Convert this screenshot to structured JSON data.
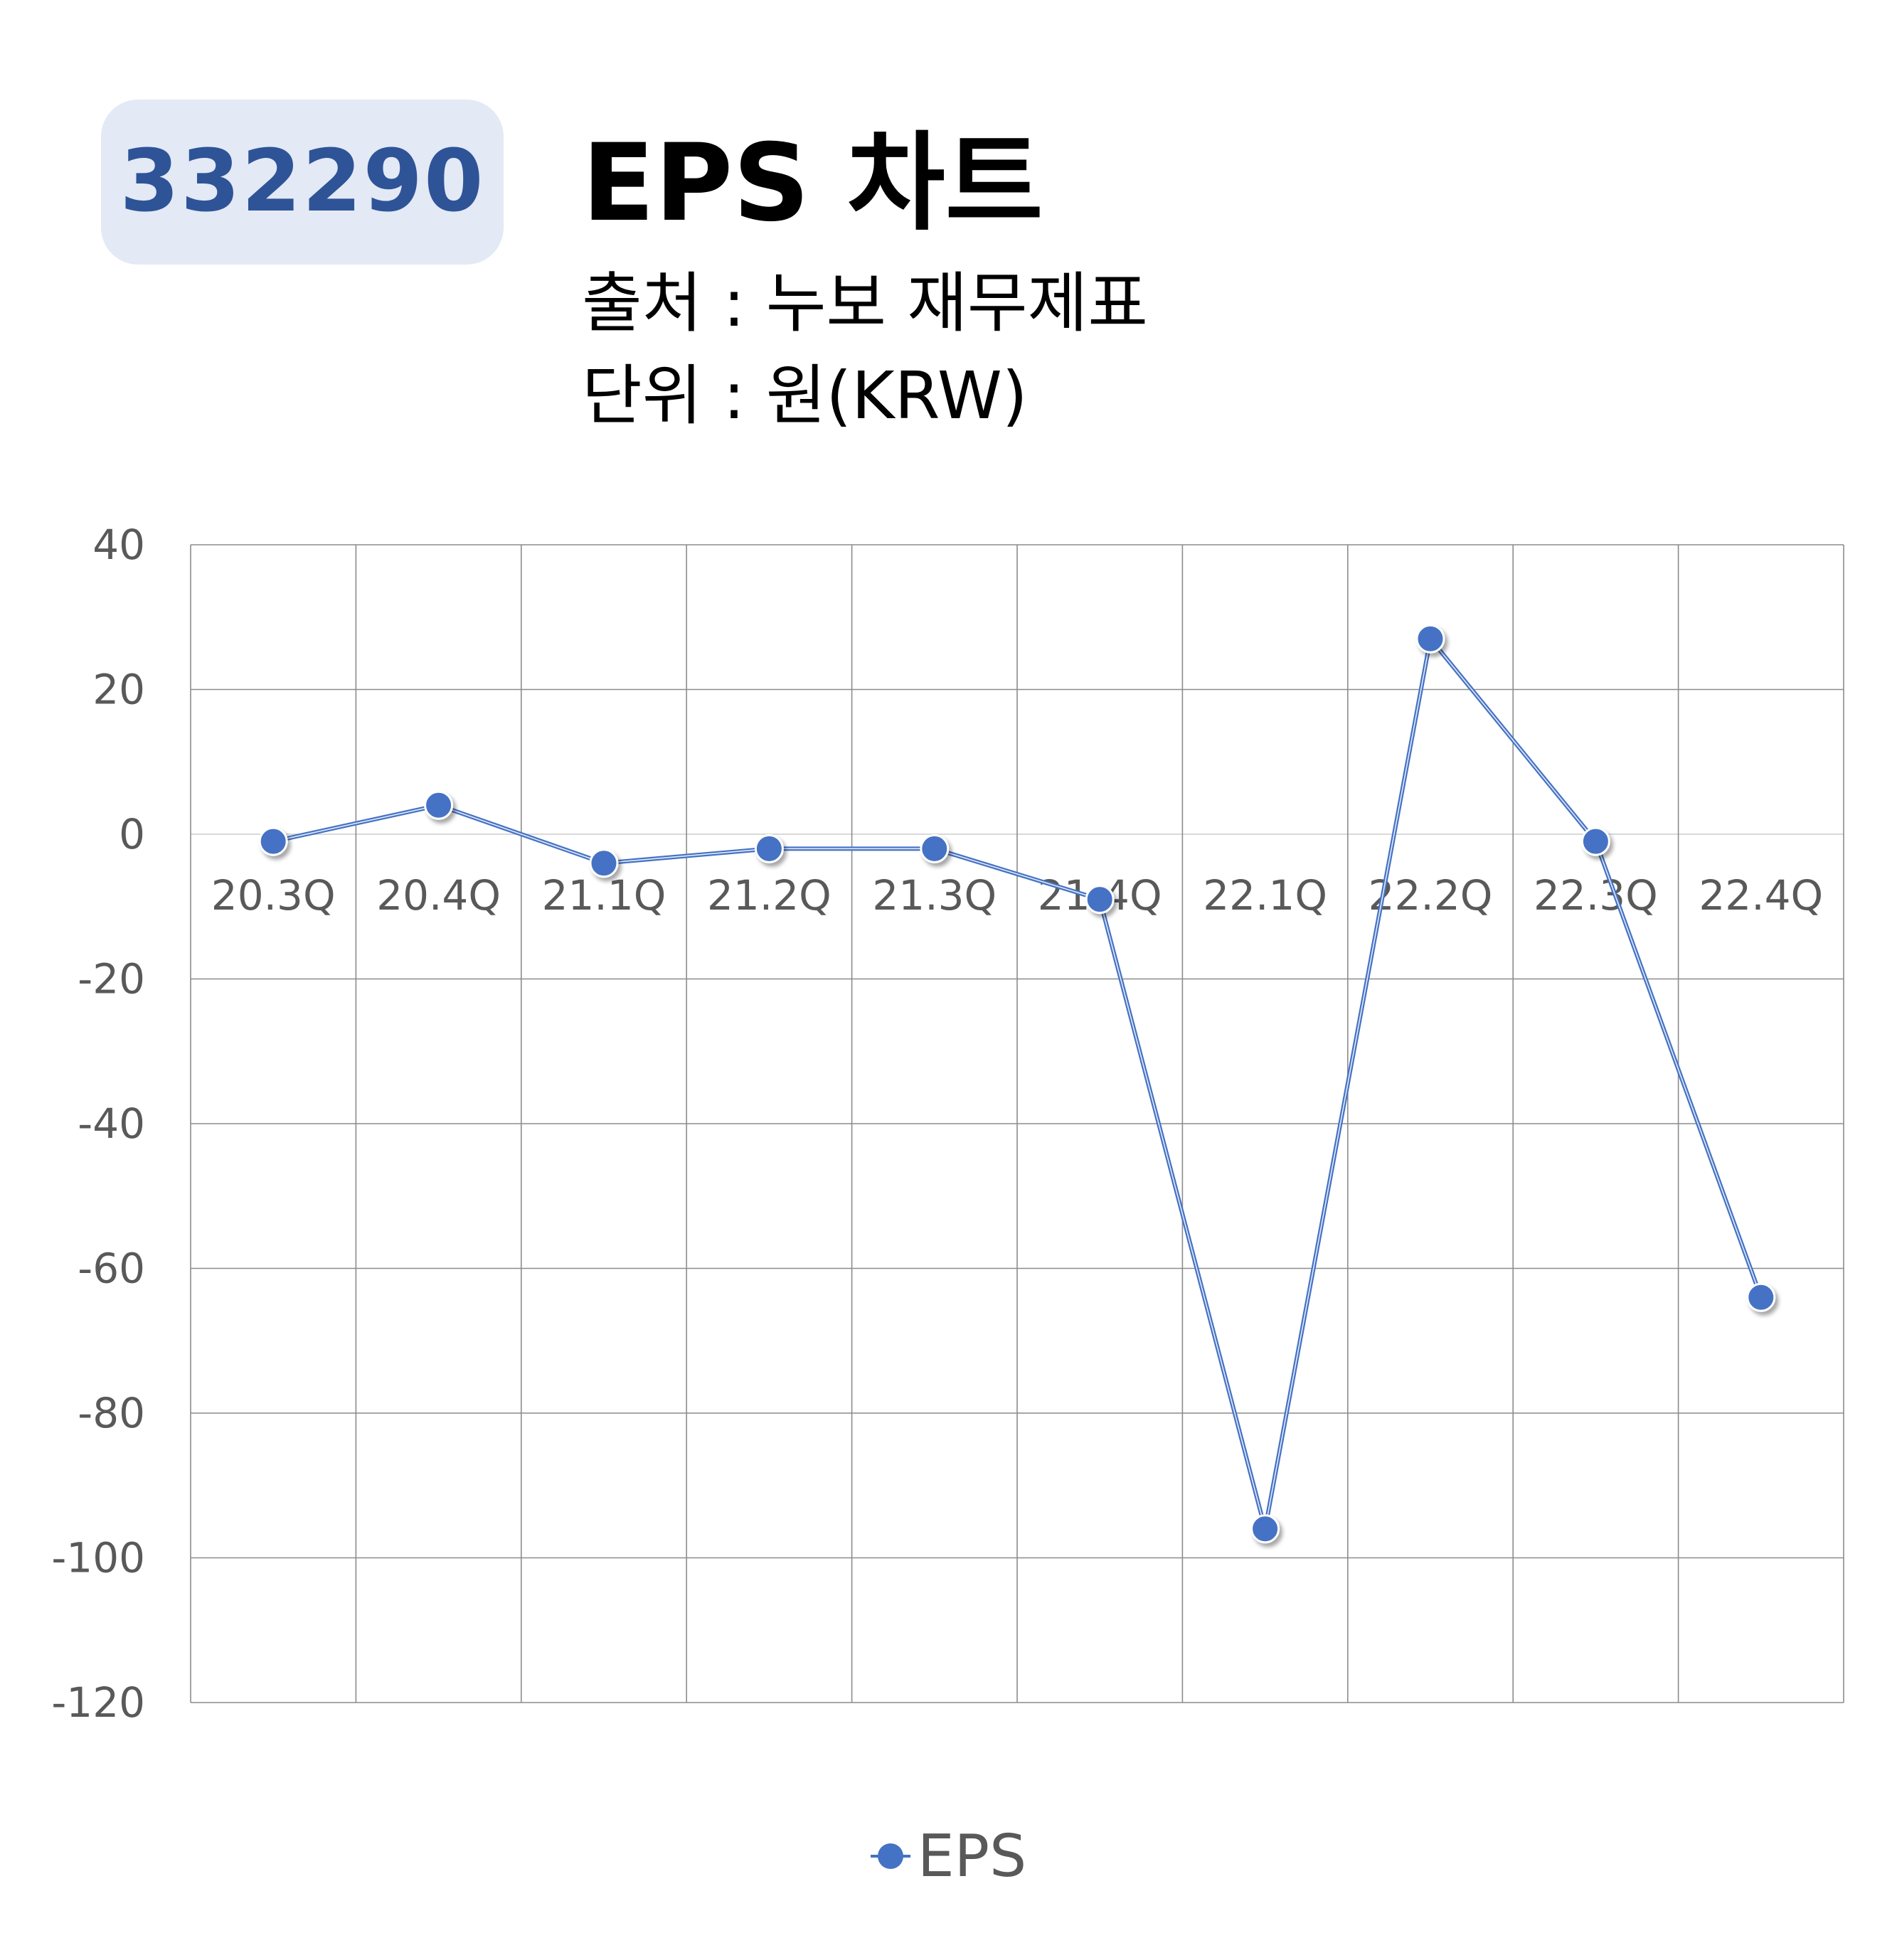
{
  "header": {
    "code": "332290",
    "title": "EPS 차트",
    "source": "출처 : 누보 재무제표",
    "unit": "단위 : 원(KRW)"
  },
  "chart_data": {
    "type": "line",
    "categories": [
      "20.3Q",
      "20.4Q",
      "21.1Q",
      "21.2Q",
      "21.3Q",
      "21.4Q",
      "22.1Q",
      "22.2Q",
      "22.3Q",
      "22.4Q"
    ],
    "series": [
      {
        "name": "EPS",
        "values": [
          -1,
          4,
          -4,
          -2,
          -2,
          -9,
          -96,
          27,
          -1,
          -64
        ]
      }
    ],
    "ylim": [
      -120,
      40
    ],
    "yticks": [
      40,
      20,
      0,
      -20,
      -40,
      -60,
      -80,
      -100,
      -120
    ],
    "grid": true,
    "legend": "bottom",
    "colors": {
      "series": "#4472c4",
      "grid": "#8c8c8c",
      "zero_line": "#d9d9d9",
      "tick_text": "#595959"
    }
  }
}
